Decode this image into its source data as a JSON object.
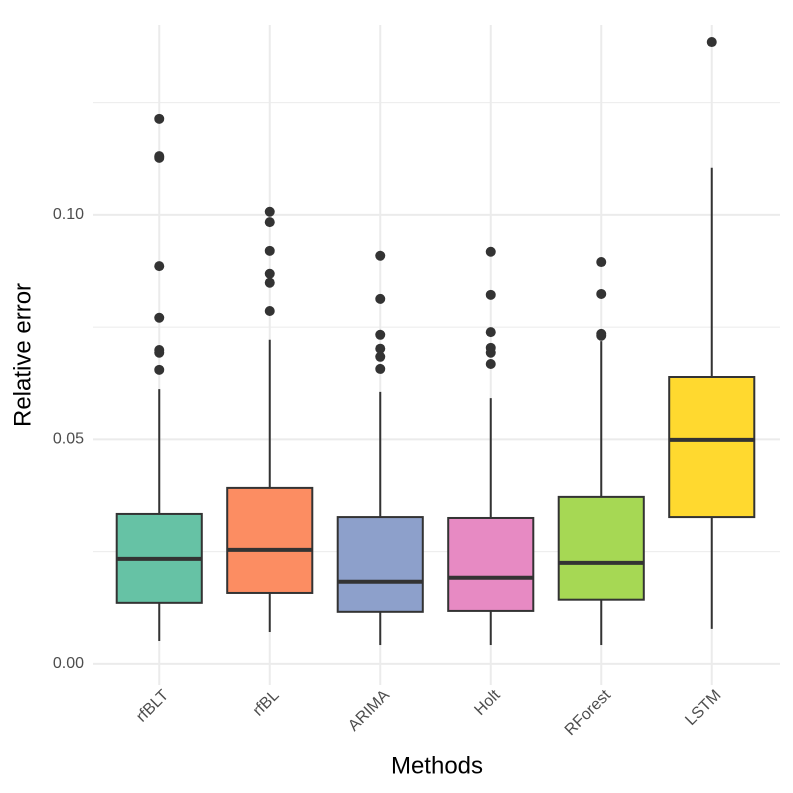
{
  "chart_data": {
    "type": "box",
    "x_label": "Methods",
    "y_label": "Relative error",
    "categories": [
      "rfBLT",
      "rfBL",
      "ARIMA",
      "Holt",
      "RForest",
      "LSTM"
    ],
    "colors": [
      "#66c2a5",
      "#fc8d62",
      "#8da0cb",
      "#e78ac3",
      "#a6d854",
      "#ffd92f"
    ],
    "boxes": [
      {
        "min": 0.0051,
        "q1": 0.0136,
        "median": 0.0234,
        "q3": 0.0334,
        "max": 0.0612,
        "outliers": [
          0.1214,
          0.1131,
          0.1127,
          0.0886,
          0.0771,
          0.0699,
          0.0693,
          0.0655
        ]
      },
      {
        "min": 0.0071,
        "q1": 0.0158,
        "median": 0.0254,
        "q3": 0.0392,
        "max": 0.0722,
        "outliers": [
          0.1007,
          0.0984,
          0.092,
          0.0869,
          0.0849,
          0.0786
        ]
      },
      {
        "min": 0.0042,
        "q1": 0.0116,
        "median": 0.0183,
        "q3": 0.0327,
        "max": 0.0606,
        "outliers": [
          0.0909,
          0.0813,
          0.0733,
          0.0702,
          0.0684,
          0.0657
        ]
      },
      {
        "min": 0.0042,
        "q1": 0.0118,
        "median": 0.0192,
        "q3": 0.0325,
        "max": 0.0592,
        "outliers": [
          0.0918,
          0.0822,
          0.0739,
          0.0704,
          0.0693,
          0.0668
        ]
      },
      {
        "min": 0.0042,
        "q1": 0.0143,
        "median": 0.0225,
        "q3": 0.0372,
        "max": 0.0719,
        "outliers": [
          0.0895,
          0.0824,
          0.0735,
          0.0731
        ]
      },
      {
        "min": 0.0078,
        "q1": 0.0327,
        "median": 0.0499,
        "q3": 0.0639,
        "max": 0.1105,
        "outliers": [
          0.1385
        ]
      }
    ],
    "ylim": [
      -0.0047,
      0.1423
    ],
    "yticks": [
      {
        "value": 0,
        "label": "0.00"
      },
      {
        "value": 0.05,
        "label": "0.05"
      },
      {
        "value": 0.1,
        "label": "0.10"
      }
    ],
    "minor_yticks": [
      0.025,
      0.075,
      0.125
    ],
    "grid": true
  }
}
